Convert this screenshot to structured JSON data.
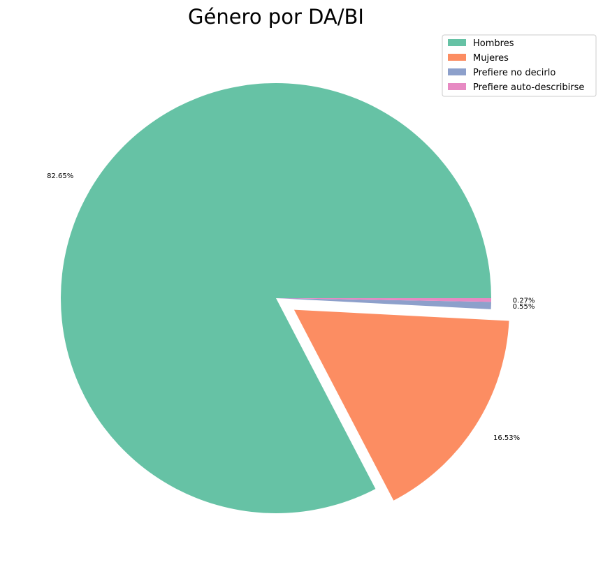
{
  "chart_data": {
    "type": "pie",
    "title": "Género por DA/BI",
    "legend_position": "top-right",
    "slices": [
      {
        "name": "Hombres",
        "value": 82.65,
        "label": "82.65%",
        "color": "#66c2a5",
        "explode": 0.0
      },
      {
        "name": "Mujeres",
        "value": 16.53,
        "label": "16.53%",
        "color": "#fc8d62",
        "explode": 0.1
      },
      {
        "name": "Prefiere no decirlo",
        "value": 0.55,
        "label": "0.55%",
        "color": "#8da0cb",
        "explode": 0.0
      },
      {
        "name": "Prefiere auto-describirse",
        "value": 0.27,
        "label": "0.27%",
        "color": "#e78ac3",
        "explode": 0.0
      }
    ]
  }
}
